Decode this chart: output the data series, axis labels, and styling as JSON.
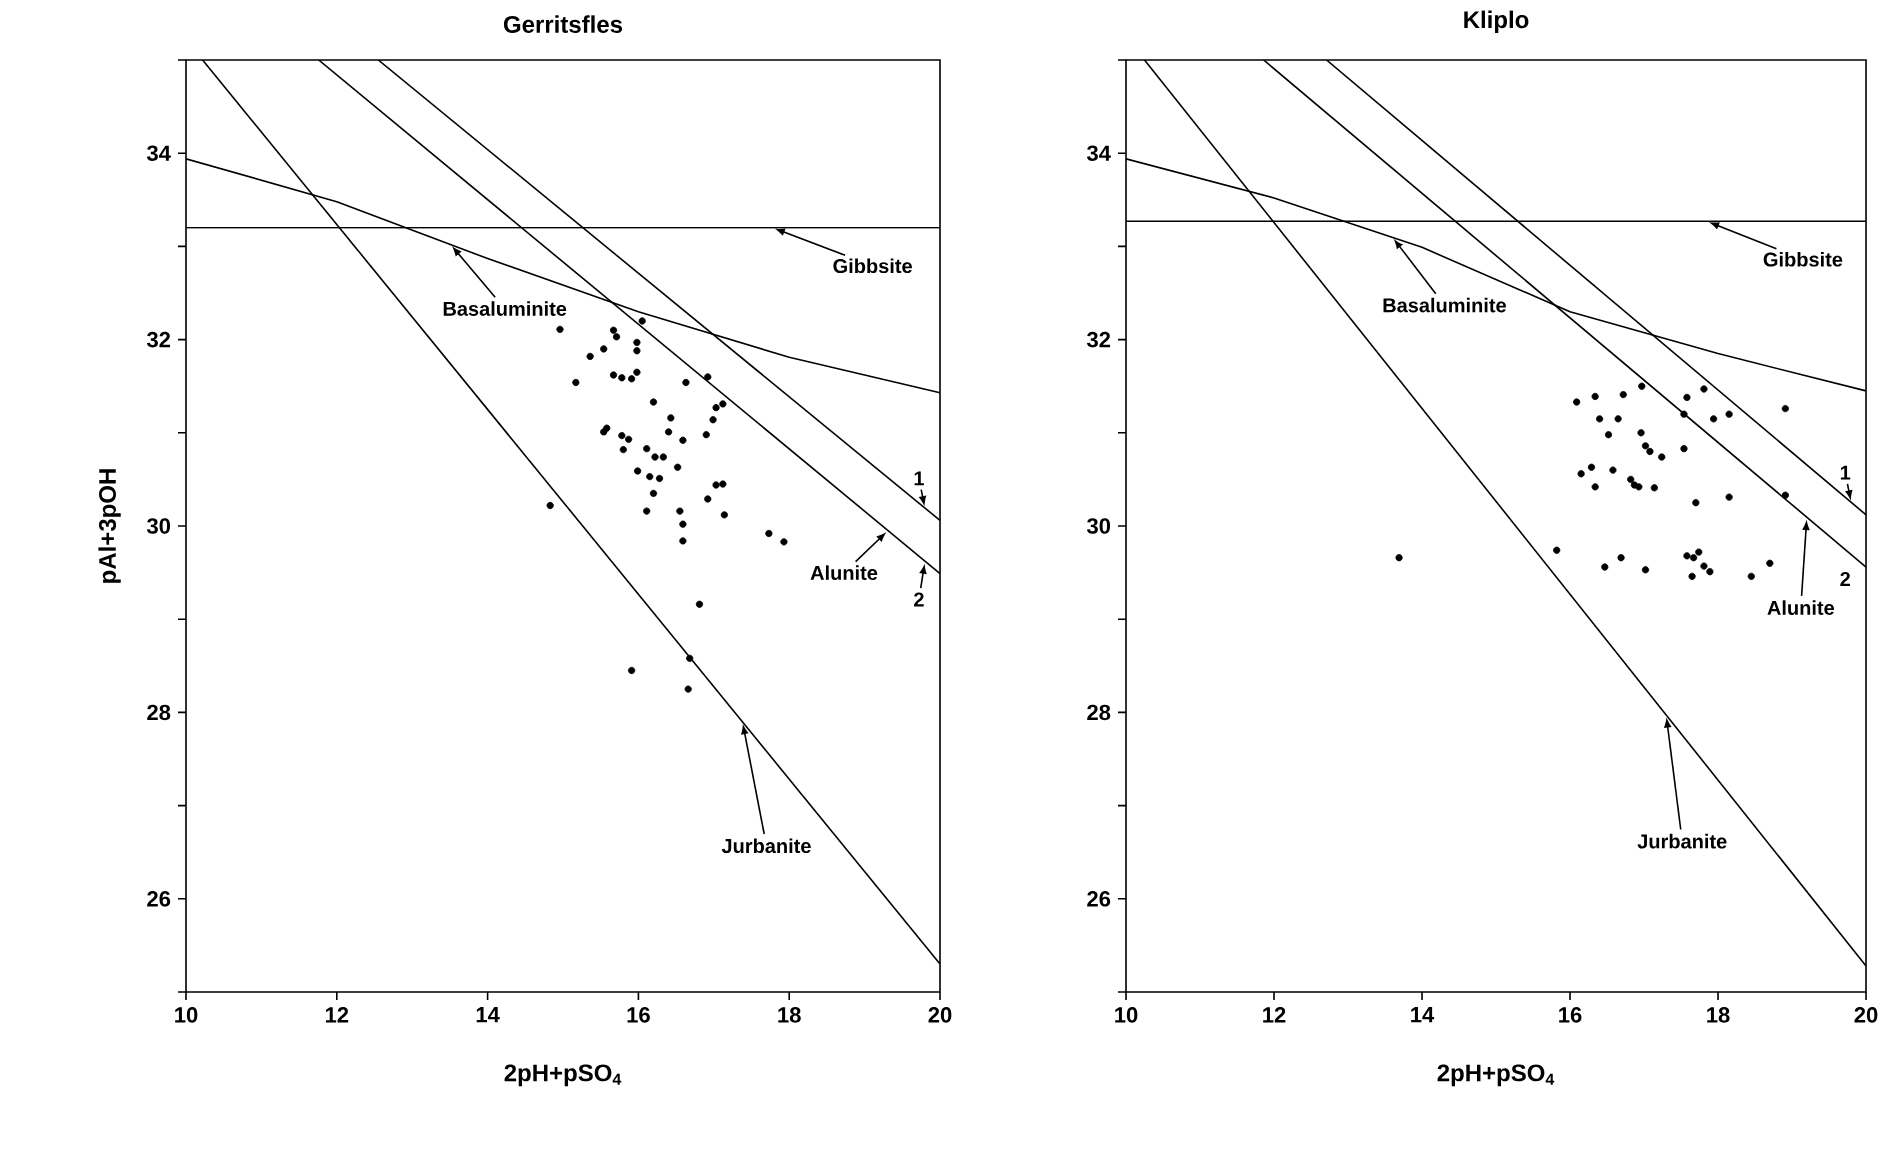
{
  "chart_data": [
    {
      "type": "scatter",
      "title": "Gerritsfles",
      "xlabel": "2pH+pSO$_{4}$",
      "ylabel": "pAl+3pOH",
      "xlim": [
        10,
        20
      ],
      "ylim": [
        25,
        35
      ],
      "xticks": [
        10,
        12,
        14,
        16,
        18,
        20
      ],
      "yticks": [
        {
          "value": 25,
          "label": null
        },
        26,
        {
          "value": 27,
          "label": null
        },
        28,
        {
          "value": 29,
          "label": null
        },
        30,
        {
          "value": 31,
          "label": null
        },
        32,
        {
          "value": 33,
          "label": null
        },
        34,
        {
          "value": 35,
          "label": null
        }
      ],
      "series": [
        {
          "marker": "circle",
          "color": "#000000",
          "x": [
            14.96,
            15.67,
            15.71,
            15.98,
            16.05,
            15.36,
            15.54,
            15.98,
            15.17,
            15.67,
            15.78,
            15.91,
            15.98,
            16.2,
            16.63,
            16.92,
            17.03,
            17.12,
            16.43,
            16.4,
            16.59,
            16.9,
            16.99,
            15.58,
            15.54,
            15.78,
            15.87,
            15.8,
            16.11,
            16.22,
            16.33,
            15.99,
            16.15,
            16.28,
            16.52,
            16.2,
            16.11,
            16.55,
            16.59,
            16.59,
            16.92,
            17.03,
            17.12,
            17.14,
            17.73,
            17.93,
            14.83,
            16.81,
            15.91,
            16.66,
            16.68
          ],
          "values": [
            32.11,
            32.1,
            32.03,
            31.97,
            32.2,
            31.82,
            31.9,
            31.88,
            31.54,
            31.62,
            31.59,
            31.58,
            31.65,
            31.33,
            31.54,
            31.6,
            31.27,
            31.31,
            31.16,
            31.01,
            30.92,
            30.98,
            31.14,
            31.05,
            31.01,
            30.97,
            30.93,
            30.82,
            30.83,
            30.74,
            30.74,
            30.59,
            30.53,
            30.51,
            30.63,
            30.35,
            30.16,
            30.16,
            30.02,
            29.84,
            30.29,
            30.44,
            30.45,
            30.12,
            29.92,
            29.83,
            30.22,
            29.16,
            28.45,
            28.25,
            28.58
          ]
        },
        {
          "type": "line",
          "color": "#000000",
          "x": [
            10,
            20
          ],
          "values": [
            33.2,
            33.2
          ]
        },
        {
          "type": "line",
          "color": "#000000",
          "x": [
            10,
            12,
            14,
            16,
            18,
            20
          ],
          "values": [
            33.94,
            33.48,
            32.87,
            32.3,
            31.81,
            31.43
          ]
        },
        {
          "type": "line",
          "color": "#000000",
          "x": [
            10.22,
            20
          ],
          "values": [
            35,
            25.3
          ]
        },
        {
          "type": "line",
          "color": "#000000",
          "x": [
            12.55,
            20
          ],
          "values": [
            35,
            30.06
          ]
        },
        {
          "type": "line",
          "color": "#000000",
          "x": [
            11.76,
            20
          ],
          "values": [
            35,
            29.49
          ]
        }
      ],
      "annotations": [
        {
          "text": "Gibbsite",
          "x": 17.78,
          "y": 33.2
        },
        {
          "text": "Basaluminite",
          "x": 13.51,
          "y": 33.02
        },
        {
          "text": "Jurbanite",
          "x": 17.38,
          "y": 27.9
        },
        {
          "text": "1",
          "x": 19.8,
          "y": 30.19
        },
        {
          "text": "2",
          "x": 19.8,
          "y": 29.62
        },
        {
          "text": "Alunite",
          "x": 19.31,
          "y": 29.95
        }
      ]
    },
    {
      "type": "scatter",
      "title": "Kliplo",
      "xlabel": "2pH+pSO$_{4}$",
      "xlim": [
        10,
        20
      ],
      "ylim": [
        25,
        35
      ],
      "xticks": [
        10,
        12,
        14,
        16,
        18,
        20
      ],
      "yticks": [
        {
          "value": 25,
          "label": null
        },
        26,
        {
          "value": 27,
          "label": null
        },
        28,
        {
          "value": 29,
          "label": null
        },
        30,
        {
          "value": 31,
          "label": null
        },
        32,
        {
          "value": 33,
          "label": null
        },
        34,
        {
          "value": 35,
          "label": null
        }
      ],
      "series": [
        {
          "marker": "circle",
          "color": "#000000",
          "x": [
            13.69,
            16.09,
            16.34,
            16.72,
            16.97,
            16.4,
            16.65,
            16.52,
            16.96,
            17.02,
            17.08,
            17.24,
            17.54,
            17.58,
            17.81,
            17.94,
            18.15,
            18.91,
            17.54,
            16.15,
            16.29,
            16.34,
            16.58,
            16.82,
            16.87,
            16.93,
            17.14,
            17.7,
            18.15,
            18.91,
            15.82,
            16.47,
            16.69,
            17.02,
            17.58,
            17.67,
            17.74,
            17.81,
            17.89,
            17.65,
            18.45,
            18.7
          ],
          "values": [
            29.66,
            31.33,
            31.39,
            31.41,
            31.5,
            31.15,
            31.15,
            30.98,
            31.0,
            30.86,
            30.8,
            30.74,
            31.2,
            31.38,
            31.47,
            31.15,
            31.2,
            31.26,
            30.83,
            30.56,
            30.63,
            30.42,
            30.6,
            30.5,
            30.44,
            30.42,
            30.41,
            30.25,
            30.31,
            30.33,
            29.74,
            29.56,
            29.66,
            29.53,
            29.68,
            29.66,
            29.72,
            29.57,
            29.51,
            29.46,
            29.46,
            29.6
          ]
        },
        {
          "type": "line",
          "color": "#000000",
          "x": [
            10,
            20
          ],
          "values": [
            33.27,
            33.27
          ]
        },
        {
          "type": "line",
          "color": "#000000",
          "x": [
            10,
            12,
            14,
            16,
            18,
            20
          ],
          "values": [
            33.94,
            33.52,
            32.99,
            32.3,
            31.85,
            31.45
          ]
        },
        {
          "type": "line",
          "color": "#000000",
          "x": [
            10.25,
            20
          ],
          "values": [
            35,
            25.28
          ]
        },
        {
          "type": "line",
          "color": "#000000",
          "x": [
            12.71,
            20
          ],
          "values": [
            35,
            30.12
          ]
        },
        {
          "type": "line",
          "color": "#000000",
          "x": [
            11.86,
            20
          ],
          "values": [
            35,
            29.56
          ]
        }
      ],
      "annotations": [
        {
          "text": "Gibbsite",
          "x": 17.85,
          "y": 33.27
        },
        {
          "text": "Basaluminite",
          "x": 13.6,
          "y": 33.1
        },
        {
          "text": "Jurbanite",
          "x": 17.3,
          "y": 27.97
        },
        {
          "text": "1",
          "x": 19.8,
          "y": 30.25
        },
        {
          "text": "2",
          "x": 19.8,
          "y": 29.69
        },
        {
          "text": "Alunite",
          "x": 19.2,
          "y": 30.09
        }
      ]
    }
  ]
}
